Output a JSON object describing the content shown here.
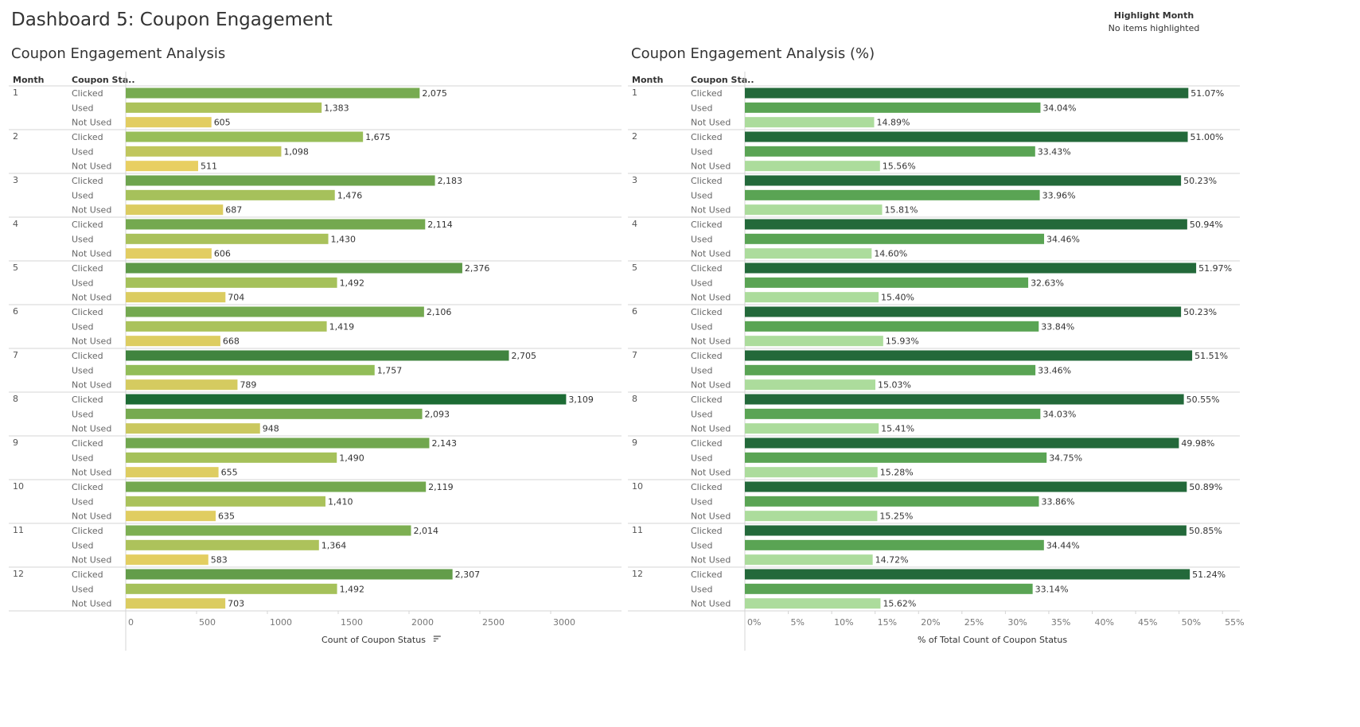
{
  "dashboard": {
    "title": "Dashboard 5: Coupon Engagement",
    "highlight": {
      "title": "Highlight Month",
      "status": "No items highlighted"
    }
  },
  "chart_data": [
    {
      "type": "bar",
      "orientation": "horizontal",
      "title": "Coupon Engagement Analysis",
      "row_headers": [
        "Month",
        "Coupon Sta.."
      ],
      "months": [
        "1",
        "2",
        "3",
        "4",
        "5",
        "6",
        "7",
        "8",
        "9",
        "10",
        "11",
        "12"
      ],
      "statuses": [
        "Clicked",
        "Used",
        "Not Used"
      ],
      "values": [
        [
          2075,
          1383,
          605
        ],
        [
          1675,
          1098,
          511
        ],
        [
          2183,
          1476,
          687
        ],
        [
          2114,
          1430,
          606
        ],
        [
          2376,
          1492,
          704
        ],
        [
          2106,
          1419,
          668
        ],
        [
          2705,
          1757,
          789
        ],
        [
          3109,
          2093,
          948
        ],
        [
          2143,
          1490,
          655
        ],
        [
          2119,
          1410,
          635
        ],
        [
          2014,
          1364,
          583
        ],
        [
          2307,
          1492,
          703
        ]
      ],
      "labels": [
        [
          "2,075",
          "1,383",
          "605"
        ],
        [
          "1,675",
          "1,098",
          "511"
        ],
        [
          "2,183",
          "1,476",
          "687"
        ],
        [
          "2,114",
          "1,430",
          "606"
        ],
        [
          "2,376",
          "1,492",
          "704"
        ],
        [
          "2,106",
          "1,419",
          "668"
        ],
        [
          "2,705",
          "1,757",
          "789"
        ],
        [
          "3,109",
          "2,093",
          "948"
        ],
        [
          "2,143",
          "1,490",
          "655"
        ],
        [
          "2,119",
          "1,410",
          "635"
        ],
        [
          "2,014",
          "1,364",
          "583"
        ],
        [
          "2,307",
          "1,492",
          "703"
        ]
      ],
      "xlim": [
        0,
        3500
      ],
      "ticks": [
        0,
        500,
        1000,
        1500,
        2000,
        2500,
        3000
      ],
      "tick_labels": [
        "0",
        "500",
        "1000",
        "1500",
        "2000",
        "2500",
        "3000"
      ],
      "xlabel": "Count of Coupon Status",
      "xlabel_icon": "sort-icon",
      "grid": false,
      "color_scale": {
        "type": "diverging",
        "low": "#e9cf62",
        "mid": "#8fbc58",
        "high": "#1c6b34",
        "low_value": 500,
        "high_value": 3109
      }
    },
    {
      "type": "bar",
      "orientation": "horizontal",
      "title": "Coupon Engagement Analysis (%)",
      "row_headers": [
        "Month",
        "Coupon Sta.."
      ],
      "months": [
        "1",
        "2",
        "3",
        "4",
        "5",
        "6",
        "7",
        "8",
        "9",
        "10",
        "11",
        "12"
      ],
      "statuses": [
        "Clicked",
        "Used",
        "Not Used"
      ],
      "values": [
        [
          51.07,
          34.04,
          14.89
        ],
        [
          51.0,
          33.43,
          15.56
        ],
        [
          50.23,
          33.96,
          15.81
        ],
        [
          50.94,
          34.46,
          14.6
        ],
        [
          51.97,
          32.63,
          15.4
        ],
        [
          50.23,
          33.84,
          15.93
        ],
        [
          51.51,
          33.46,
          15.03
        ],
        [
          50.55,
          34.03,
          15.41
        ],
        [
          49.98,
          34.75,
          15.28
        ],
        [
          50.89,
          33.86,
          15.25
        ],
        [
          50.85,
          34.44,
          14.72
        ],
        [
          51.24,
          33.14,
          15.62
        ]
      ],
      "labels": [
        [
          "51.07%",
          "34.04%",
          "14.89%"
        ],
        [
          "51.00%",
          "33.43%",
          "15.56%"
        ],
        [
          "50.23%",
          "33.96%",
          "15.81%"
        ],
        [
          "50.94%",
          "34.46%",
          "14.60%"
        ],
        [
          "51.97%",
          "32.63%",
          "15.40%"
        ],
        [
          "50.23%",
          "33.84%",
          "15.93%"
        ],
        [
          "51.51%",
          "33.46%",
          "15.03%"
        ],
        [
          "50.55%",
          "34.03%",
          "15.41%"
        ],
        [
          "49.98%",
          "34.75%",
          "15.28%"
        ],
        [
          "50.89%",
          "33.86%",
          "15.25%"
        ],
        [
          "50.85%",
          "34.44%",
          "14.72%"
        ],
        [
          "51.24%",
          "33.14%",
          "15.62%"
        ]
      ],
      "xlim": [
        0,
        57
      ],
      "ticks": [
        0,
        5,
        10,
        15,
        20,
        25,
        30,
        35,
        40,
        45,
        50,
        55
      ],
      "tick_labels": [
        "0%",
        "5%",
        "10%",
        "15%",
        "20%",
        "25%",
        "30%",
        "35%",
        "40%",
        "45%",
        "50%",
        "55%"
      ],
      "xlabel": "% of Total Count of Coupon Status",
      "grid": false,
      "status_colors": {
        "Clicked": "#23693a",
        "Used": "#5aa454",
        "Not Used": "#acdc9c"
      }
    }
  ]
}
